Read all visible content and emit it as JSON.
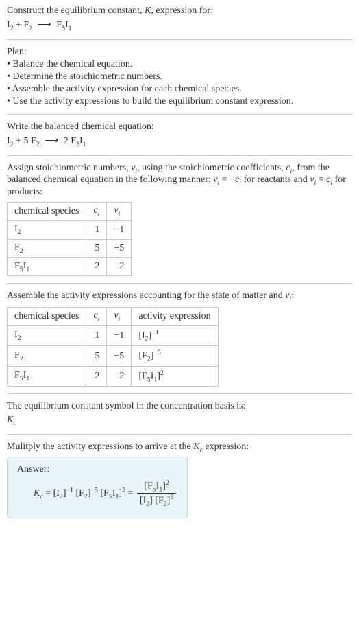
{
  "intro": {
    "line1": "Construct the equilibrium constant, ",
    "Ksym": "K",
    "line1b": ", expression for:",
    "eq_left": "I",
    "eq_I_sub": "2",
    "plus": " + ",
    "eq_F": "F",
    "eq_F_sub": "2",
    "arrow": "⟶",
    "eq_prod": "F",
    "eq_prod_sub1": "5",
    "eq_prod_I": "I",
    "eq_prod_sub2": "1"
  },
  "plan": {
    "title": "Plan:",
    "items": [
      "• Balance the chemical equation.",
      "• Determine the stoichiometric numbers.",
      "• Assemble the activity expression for each chemical species.",
      "• Use the activity expressions to build the equilibrium constant expression."
    ]
  },
  "balanced": {
    "intro": "Write the balanced chemical equation:",
    "c1": "I",
    "c1sub": "2",
    "plus": " + ",
    "coef2": "5 ",
    "c2": "F",
    "c2sub": "2",
    "arrow": "⟶",
    "coef3": "2 ",
    "c3": "F",
    "c3sub1": "5",
    "c3b": "I",
    "c3sub2": "1"
  },
  "stoich": {
    "intro_a": "Assign stoichiometric numbers, ",
    "nu": "ν",
    "nu_sub": "i",
    "intro_b": ", using the stoichiometric coefficients, ",
    "c": "c",
    "c_sub": "i",
    "intro_c": ", from the balanced chemical equation in the following manner: ",
    "rel1a": "ν",
    "rel1a_sub": "i",
    "rel1b": " = −",
    "rel1c": "c",
    "rel1c_sub": "i",
    "intro_d": " for reactants and ",
    "rel2a": "ν",
    "rel2a_sub": "i",
    "rel2b": " = ",
    "rel2c": "c",
    "rel2c_sub": "i",
    "intro_e": " for products:",
    "headers": {
      "species": "chemical species",
      "ci": "c",
      "ci_sub": "i",
      "nu": "ν",
      "nu_sub": "i"
    },
    "rows": [
      {
        "sp": "I",
        "sp_sub": "2",
        "ci": "1",
        "nu": "−1"
      },
      {
        "sp": "F",
        "sp_sub": "2",
        "ci": "5",
        "nu": "−5"
      },
      {
        "sp": "F",
        "sp_sub": "5",
        "sp2": "I",
        "sp_sub2": "1",
        "ci": "2",
        "nu": "2"
      }
    ]
  },
  "activity": {
    "intro_a": "Assemble the activity expressions accounting for the state of matter and ",
    "nu": "ν",
    "nu_sub": "i",
    "intro_b": ":",
    "headers": {
      "species": "chemical species",
      "ci": "c",
      "ci_sub": "i",
      "nu": "ν",
      "nu_sub": "i",
      "act": "activity expression"
    },
    "rows": [
      {
        "sp": "I",
        "sp_sub": "2",
        "ci": "1",
        "nu": "−1",
        "act_sp": "I",
        "act_sub": "2",
        "act_exp": "−1"
      },
      {
        "sp": "F",
        "sp_sub": "2",
        "ci": "5",
        "nu": "−5",
        "act_sp": "F",
        "act_sub": "2",
        "act_exp": "−5"
      },
      {
        "sp": "F",
        "sp_sub": "5",
        "sp2": "I",
        "sp_sub2": "1",
        "ci": "2",
        "nu": "2",
        "act_sp": "F",
        "act_sub": "5",
        "act_sp2": "I",
        "act_sub2": "1",
        "act_exp": "2"
      }
    ]
  },
  "basis": {
    "line1": "The equilibrium constant symbol in the concentration basis is:",
    "K": "K",
    "K_sub": "c"
  },
  "multiply": {
    "intro_a": "Mulitply the activity expressions to arrive at the ",
    "K": "K",
    "K_sub": "c",
    "intro_b": " expression:"
  },
  "answer": {
    "label": "Answer:",
    "K": "K",
    "K_sub": "c",
    "eq": " = ",
    "t1_sp": "I",
    "t1_sub": "2",
    "t1_exp": "−1",
    "t2_sp": "F",
    "t2_sub": "2",
    "t2_exp": "−5",
    "t3_sp": "F",
    "t3_sub": "5",
    "t3_sp2": "I",
    "t3_sub2": "1",
    "t3_exp": "2",
    "eq2": " = ",
    "num_sp": "F",
    "num_sub": "5",
    "num_sp2": "I",
    "num_sub2": "1",
    "num_exp": "2",
    "den1_sp": "I",
    "den1_sub": "2",
    "den2_sp": "F",
    "den2_sub": "2",
    "den2_exp": "5"
  }
}
